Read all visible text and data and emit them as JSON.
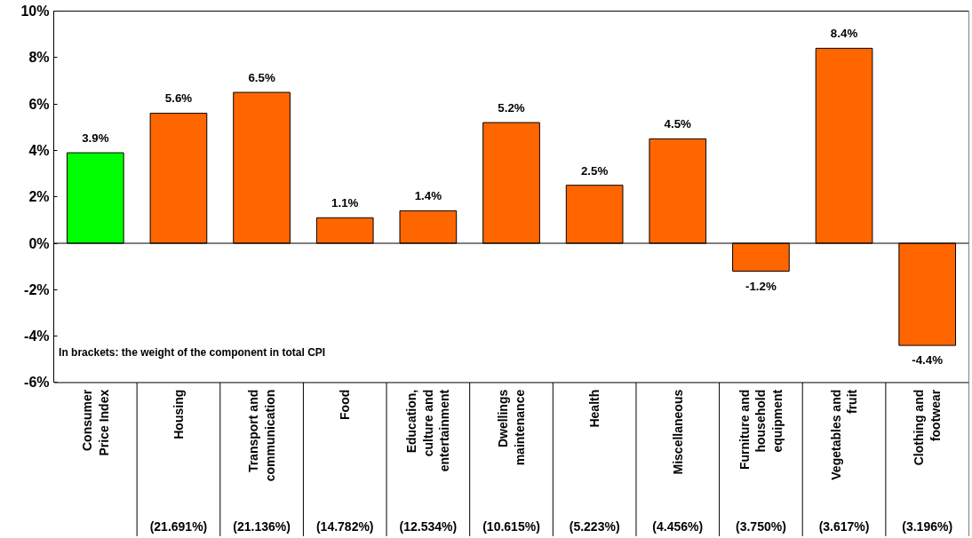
{
  "chart_data": {
    "type": "bar",
    "categories": [
      "Consumer\nPrice Index",
      "Housing",
      "Transport and\ncommunication",
      "Food",
      "Education,\nculture and\nentertainment",
      "Dwellings\nmaintenance",
      "Health",
      "Miscellaneous",
      "Furniture and\nhousehold\nequipment",
      "Vegetables and\nfruit",
      "Clothing and\nfootwear"
    ],
    "values": [
      3.9,
      5.6,
      6.5,
      1.1,
      1.4,
      5.2,
      2.5,
      4.5,
      -1.2,
      8.4,
      -4.4
    ],
    "colors": [
      "#00ff00",
      "#ff6600",
      "#ff6600",
      "#ff6600",
      "#ff6600",
      "#ff6600",
      "#ff6600",
      "#ff6600",
      "#ff6600",
      "#ff6600",
      "#ff6600"
    ],
    "value_labels": [
      "3.9%",
      "5.6%",
      "6.5%",
      "1.1%",
      "1.4%",
      "5.2%",
      "2.5%",
      "4.5%",
      "-1.2%",
      "8.4%",
      "-4.4%"
    ],
    "ylim": [
      -6,
      10
    ],
    "yticks": [
      {
        "value": -6,
        "label": "-6%"
      },
      {
        "value": -4,
        "label": "-4%"
      },
      {
        "value": -2,
        "label": "-2%"
      },
      {
        "value": 0,
        "label": "0%"
      },
      {
        "value": 2,
        "label": "2%"
      },
      {
        "value": 4,
        "label": "4%"
      },
      {
        "value": 6,
        "label": "6%"
      },
      {
        "value": 8,
        "label": "8%"
      },
      {
        "value": 10,
        "label": "10%"
      }
    ],
    "annotations": [
      "In brackets: the weight of the component in total CPI",
      "(21.691%)",
      "(21.136%)",
      "(14.782%)",
      "(12.534%)",
      "(10.615%)",
      "(5.223%)",
      "(4.456%)",
      "(3.750%)",
      "(3.617%)",
      "(3.196%)"
    ]
  }
}
